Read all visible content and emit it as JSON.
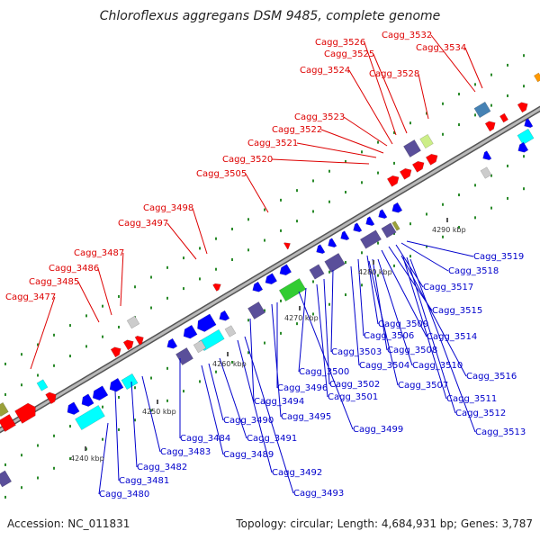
{
  "title": "Chloroflexus aggregans DSM 9485, complete genome",
  "accession": "Accession: NC_011831",
  "summary": "Topology: circular; Length: 4,684,931 bp; Genes: 3,787",
  "colors": {
    "forward_label": "#dd0000",
    "reverse_label": "#0000cc",
    "backbone": "#808080",
    "gene_red": "#ff0000",
    "gene_blue": "#0000ff",
    "gene_cyan": "#00ffff",
    "gene_slate": "#5a4f9a",
    "gene_green": "#33cc33",
    "gene_gray": "#cccccc",
    "gene_olive": "#9aa03a",
    "gene_steel": "#4682b4",
    "gene_lime": "#ccee88",
    "gene_orange": "#ff9900",
    "dot_green": "#2a8a2a"
  },
  "kbp_marks": [
    "4240 kbp",
    "4250 kbp",
    "4260 kbp",
    "4270 kbp",
    "4280 kbp",
    "4290 kbp"
  ],
  "forward_labels": [
    "Cagg_3532",
    "Cagg_3534",
    "Cagg_3526",
    "Cagg_3525",
    "Cagg_3524",
    "Cagg_3528",
    "Cagg_3523",
    "Cagg_3522",
    "Cagg_3521",
    "Cagg_3520",
    "Cagg_3505",
    "Cagg_3498",
    "Cagg_3497",
    "Cagg_3487",
    "Cagg_3486",
    "Cagg_3485",
    "Cagg_3477"
  ],
  "reverse_labels": [
    "Cagg_3519",
    "Cagg_3518",
    "Cagg_3517",
    "Cagg_3515",
    "Cagg_3514",
    "Cagg_3509",
    "Cagg_3506",
    "Cagg_3508",
    "Cagg_3503",
    "Cagg_3504",
    "Cagg_3510",
    "Cagg_3516",
    "Cagg_3500",
    "Cagg_3502",
    "Cagg_3507",
    "Cagg_3496",
    "Cagg_3501",
    "Cagg_3511",
    "Cagg_3494",
    "Cagg_3512",
    "Cagg_3495",
    "Cagg_3490",
    "Cagg_3499",
    "Cagg_3513",
    "Cagg_3484",
    "Cagg_3491",
    "Cagg_3483",
    "Cagg_3489",
    "Cagg_3482",
    "Cagg_3492",
    "Cagg_3481",
    "Cagg_3493",
    "Cagg_3480"
  ]
}
